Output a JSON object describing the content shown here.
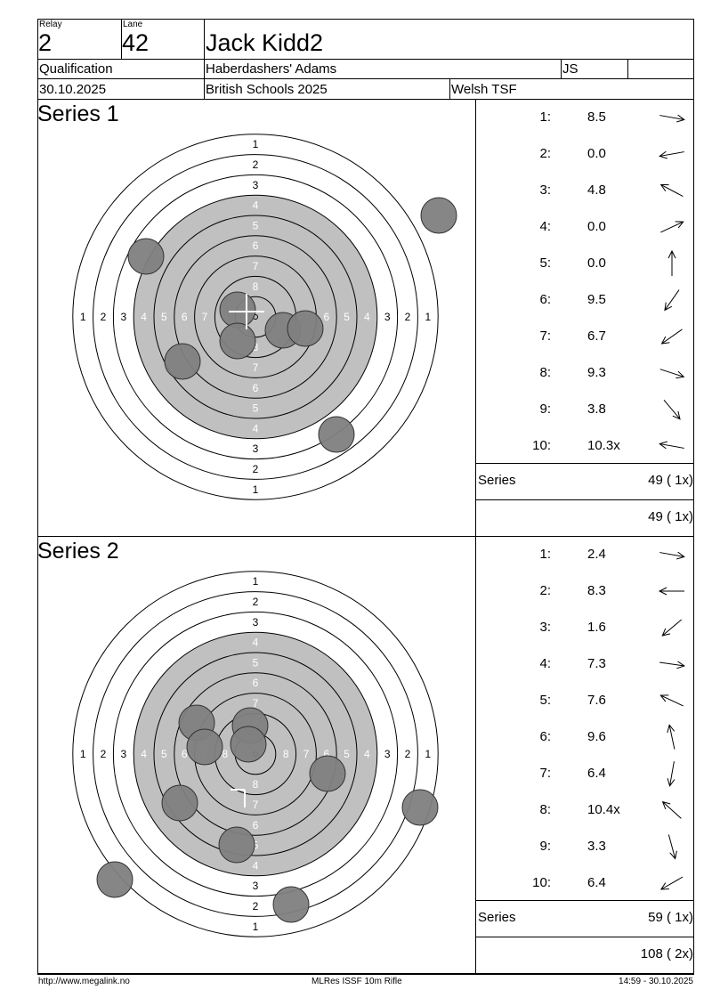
{
  "header": {
    "relay_label": "Relay",
    "relay": "2",
    "lane_label": "Lane",
    "lane": "42",
    "name": "Jack Kidd2",
    "event": "Qualification",
    "club": "Haberdashers' Adams",
    "initials": "JS",
    "extra": "",
    "date": "30.10.2025",
    "competition": "British Schools 2025",
    "team": "Welsh TSF"
  },
  "series": [
    {
      "title": "Series 1",
      "shots": [
        {
          "n": "1:",
          "v": "8.5",
          "dir": 10
        },
        {
          "n": "2:",
          "v": "0.0",
          "dir": 170
        },
        {
          "n": "3:",
          "v": "4.8",
          "dir": 208
        },
        {
          "n": "4:",
          "v": "0.0",
          "dir": -25
        },
        {
          "n": "5:",
          "v": "0.0",
          "dir": -90
        },
        {
          "n": "6:",
          "v": "9.5",
          "dir": 125
        },
        {
          "n": "7:",
          "v": "6.7",
          "dir": 145
        },
        {
          "n": "8:",
          "v": "9.3",
          "dir": 18
        },
        {
          "n": "9:",
          "v": "3.8",
          "dir": 50
        },
        {
          "n": "10:",
          "v": "10.3x",
          "dir": 190
        }
      ],
      "series_label": "Series",
      "series_total": "49 ( 1x)",
      "running_total": "49 ( 1x)"
    },
    {
      "title": "Series 2",
      "shots": [
        {
          "n": "1:",
          "v": "2.4",
          "dir": 10
        },
        {
          "n": "2:",
          "v": "8.3",
          "dir": 180
        },
        {
          "n": "3:",
          "v": "1.6",
          "dir": 140
        },
        {
          "n": "4:",
          "v": "7.3",
          "dir": 8
        },
        {
          "n": "5:",
          "v": "7.6",
          "dir": 205
        },
        {
          "n": "6:",
          "v": "9.6",
          "dir": 258
        },
        {
          "n": "7:",
          "v": "6.4",
          "dir": 100
        },
        {
          "n": "8:",
          "v": "10.4x",
          "dir": 222
        },
        {
          "n": "9:",
          "v": "3.3",
          "dir": 75
        },
        {
          "n": "10:",
          "v": "6.4",
          "dir": 150
        }
      ],
      "series_label": "Series",
      "series_total": "59 ( 1x)",
      "running_total": "108 ( 2x)"
    }
  ],
  "target": {
    "ring_labels": [
      "1",
      "2",
      "3",
      "4",
      "5",
      "6",
      "7",
      "8"
    ],
    "black_color": "#c0c0c0",
    "shot_color": "#808080"
  },
  "footer": {
    "url": "http://www.megalink.no",
    "software": "MLRes ISSF 10m Rifle",
    "timestamp": "14:59 - 30.10.2025"
  }
}
